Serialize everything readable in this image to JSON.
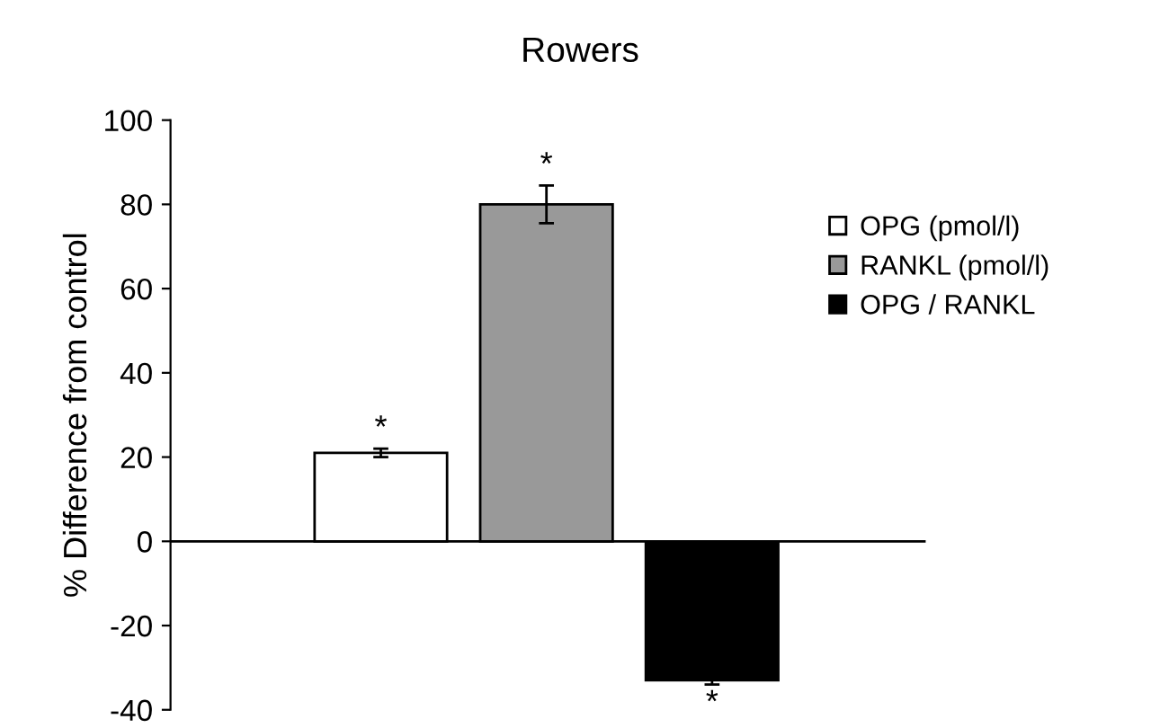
{
  "chart_data": {
    "type": "bar",
    "title": "Rowers",
    "ylabel": "% Difference from control",
    "categories": [
      null,
      null,
      null
    ],
    "series": [
      {
        "name": "OPG (pmol/l)",
        "color": "#ffffff",
        "values": [
          21,
          null,
          null
        ],
        "errors": [
          1,
          null,
          null
        ],
        "value_labels": [
          "*",
          null,
          null
        ]
      },
      {
        "name": "RANKL (pmol/l)",
        "color": "#999999",
        "values": [
          null,
          80,
          null
        ],
        "errors": [
          null,
          4.5,
          null
        ],
        "value_labels": [
          null,
          "*",
          null
        ]
      },
      {
        "name": "OPG / RANKL",
        "color": "#000000",
        "values": [
          null,
          null,
          -33
        ],
        "errors": [
          null,
          null,
          1
        ],
        "value_labels": [
          null,
          null,
          "*"
        ]
      }
    ],
    "ylim": [
      -40,
      100
    ],
    "yticks": [
      -40,
      -20,
      0,
      20,
      40,
      60,
      80,
      100
    ],
    "grid": false,
    "ref_lines": [
      {
        "axis": "y",
        "value": 0,
        "color": "#000000",
        "line_style": "solid"
      }
    ],
    "legend": "right"
  }
}
